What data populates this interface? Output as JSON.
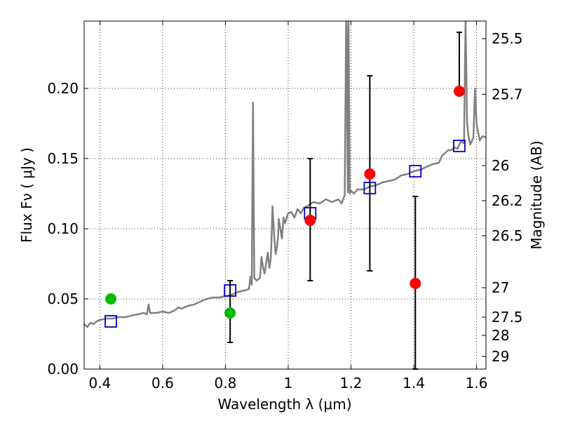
{
  "chart_data": {
    "type": "scatter",
    "xlabel": "Wavelength  λ (μm)",
    "ylabel": "Flux  Fν  ( μJy )",
    "y2label": "Magnitude (AB)",
    "xlim": [
      0.35,
      1.63
    ],
    "ylim": [
      0.0,
      0.248
    ],
    "grid": true,
    "x_ticks": [
      {
        "value": 0.4,
        "label": "0.4"
      },
      {
        "value": 0.6,
        "label": "0.6"
      },
      {
        "value": 0.8,
        "label": "0.8"
      },
      {
        "value": 1.0,
        "label": "1"
      },
      {
        "value": 1.2,
        "label": "1.2"
      },
      {
        "value": 1.4,
        "label": "1.4"
      },
      {
        "value": 1.6,
        "label": "1.6"
      }
    ],
    "y_ticks": [
      {
        "value": 0.0,
        "label": "0.00"
      },
      {
        "value": 0.05,
        "label": "0.05"
      },
      {
        "value": 0.1,
        "label": "0.10"
      },
      {
        "value": 0.15,
        "label": "0.15"
      },
      {
        "value": 0.2,
        "label": "0.20"
      }
    ],
    "y2_ticks": [
      {
        "flux": 0.2355,
        "label": "25.5"
      },
      {
        "flux": 0.1958,
        "label": "25.7"
      },
      {
        "flux": 0.145,
        "label": "26"
      },
      {
        "flux": 0.12,
        "label": "26.2"
      },
      {
        "flux": 0.095,
        "label": "26.5"
      },
      {
        "flux": 0.058,
        "label": "27"
      },
      {
        "flux": 0.037,
        "label": "27.5"
      },
      {
        "flux": 0.024,
        "label": "28"
      },
      {
        "flux": 0.009,
        "label": "29"
      }
    ],
    "series": [
      {
        "style": "line",
        "color": "#808080",
        "points": [
          [
            0.35,
            0.032
          ],
          [
            0.36,
            0.03
          ],
          [
            0.37,
            0.033
          ],
          [
            0.38,
            0.032
          ],
          [
            0.39,
            0.034
          ],
          [
            0.4,
            0.035
          ],
          [
            0.42,
            0.036
          ],
          [
            0.44,
            0.036
          ],
          [
            0.46,
            0.037
          ],
          [
            0.48,
            0.037
          ],
          [
            0.5,
            0.038
          ],
          [
            0.52,
            0.039
          ],
          [
            0.54,
            0.04
          ],
          [
            0.55,
            0.039
          ],
          [
            0.555,
            0.046
          ],
          [
            0.56,
            0.04
          ],
          [
            0.58,
            0.04
          ],
          [
            0.6,
            0.041
          ],
          [
            0.62,
            0.04
          ],
          [
            0.64,
            0.042
          ],
          [
            0.65,
            0.044
          ],
          [
            0.66,
            0.043
          ],
          [
            0.68,
            0.045
          ],
          [
            0.7,
            0.046
          ],
          [
            0.72,
            0.048
          ],
          [
            0.74,
            0.05
          ],
          [
            0.76,
            0.051
          ],
          [
            0.78,
            0.051
          ],
          [
            0.8,
            0.052
          ],
          [
            0.82,
            0.053
          ],
          [
            0.84,
            0.055
          ],
          [
            0.86,
            0.056
          ],
          [
            0.875,
            0.057
          ],
          [
            0.88,
            0.066
          ],
          [
            0.884,
            0.06
          ],
          [
            0.888,
            0.19
          ],
          [
            0.892,
            0.065
          ],
          [
            0.9,
            0.063
          ],
          [
            0.91,
            0.065
          ],
          [
            0.915,
            0.08
          ],
          [
            0.92,
            0.072
          ],
          [
            0.925,
            0.068
          ],
          [
            0.93,
            0.076
          ],
          [
            0.935,
            0.083
          ],
          [
            0.94,
            0.072
          ],
          [
            0.945,
            0.08
          ],
          [
            0.95,
            0.116
          ],
          [
            0.955,
            0.096
          ],
          [
            0.96,
            0.082
          ],
          [
            0.965,
            0.088
          ],
          [
            0.968,
            0.096
          ],
          [
            0.97,
            0.107
          ],
          [
            0.975,
            0.1
          ],
          [
            0.98,
            0.093
          ],
          [
            0.985,
            0.108
          ],
          [
            0.99,
            0.104
          ],
          [
            1.0,
            0.111
          ],
          [
            1.01,
            0.112
          ],
          [
            1.02,
            0.108
          ],
          [
            1.03,
            0.114
          ],
          [
            1.04,
            0.111
          ],
          [
            1.05,
            0.115
          ],
          [
            1.06,
            0.116
          ],
          [
            1.08,
            0.119
          ],
          [
            1.1,
            0.118
          ],
          [
            1.12,
            0.121
          ],
          [
            1.14,
            0.119
          ],
          [
            1.16,
            0.121
          ],
          [
            1.17,
            0.118
          ],
          [
            1.18,
            0.124
          ],
          [
            1.185,
            0.26
          ],
          [
            1.19,
            0.126
          ],
          [
            1.192,
            0.26
          ],
          [
            1.196,
            0.125
          ],
          [
            1.2,
            0.127
          ],
          [
            1.21,
            0.125
          ],
          [
            1.22,
            0.128
          ],
          [
            1.24,
            0.128
          ],
          [
            1.26,
            0.13
          ],
          [
            1.28,
            0.131
          ],
          [
            1.3,
            0.133
          ],
          [
            1.32,
            0.134
          ],
          [
            1.34,
            0.135
          ],
          [
            1.36,
            0.138
          ],
          [
            1.38,
            0.139
          ],
          [
            1.4,
            0.141
          ],
          [
            1.42,
            0.142
          ],
          [
            1.44,
            0.144
          ],
          [
            1.46,
            0.146
          ],
          [
            1.48,
            0.147
          ],
          [
            1.49,
            0.152
          ],
          [
            1.5,
            0.154
          ],
          [
            1.51,
            0.156
          ],
          [
            1.52,
            0.156
          ],
          [
            1.53,
            0.158
          ],
          [
            1.54,
            0.157
          ],
          [
            1.545,
            0.16
          ],
          [
            1.55,
            0.162
          ],
          [
            1.56,
            0.161
          ],
          [
            1.565,
            0.25
          ],
          [
            1.57,
            0.175
          ],
          [
            1.575,
            0.165
          ],
          [
            1.58,
            0.16
          ],
          [
            1.59,
            0.165
          ],
          [
            1.595,
            0.2
          ],
          [
            1.6,
            0.175
          ],
          [
            1.61,
            0.163
          ],
          [
            1.62,
            0.166
          ],
          [
            1.63,
            0.165
          ]
        ]
      },
      {
        "style": "open-square",
        "color": "#0000cc",
        "x": [
          0.435,
          0.815,
          1.07,
          1.26,
          1.405,
          1.545
        ],
        "y": [
          0.034,
          0.056,
          0.111,
          0.129,
          0.141,
          0.159
        ]
      },
      {
        "style": "filled-circle",
        "color": "#00bb00",
        "x": [
          0.435,
          0.815
        ],
        "y": [
          0.05,
          0.04
        ],
        "error_low": [
          0.05,
          0.019
        ],
        "error_high": [
          0.05,
          0.063
        ]
      },
      {
        "style": "filled-circle",
        "color": "#ff0000",
        "x": [
          1.07,
          1.26,
          1.405,
          1.545
        ],
        "y": [
          0.106,
          0.139,
          0.061,
          0.198
        ],
        "error_low": [
          0.063,
          0.07,
          0.0,
          0.198
        ],
        "error_high": [
          0.15,
          0.209,
          0.123,
          0.24
        ]
      }
    ]
  }
}
